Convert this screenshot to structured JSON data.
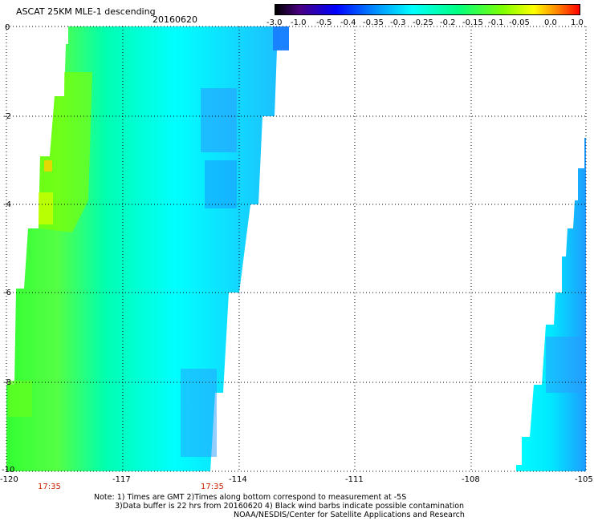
{
  "header": {
    "title": "ASCAT 25KM MLE-1 descending",
    "date": "20160620"
  },
  "colorbar": {
    "labels": [
      "-3.0",
      "-1.0",
      "-0.5",
      "-0.4",
      "-0.35",
      "-0.3",
      "-0.25",
      "-0.2",
      "-0.15",
      "-0.1",
      "-0.05",
      "0.0",
      "1.0"
    ],
    "colors": [
      "#000000",
      "#4a0080",
      "#0000ff",
      "#0070ff",
      "#00c0ff",
      "#00ffff",
      "#00ffa0",
      "#00ff40",
      "#60ff00",
      "#d0ff00",
      "#ffff00",
      "#ff8000",
      "#ff0000"
    ]
  },
  "axes": {
    "x_ticks": [
      "-120",
      "-117",
      "-114",
      "-111",
      "-108",
      "-105"
    ],
    "y_ticks": [
      "0",
      "-2",
      "-4",
      "-6",
      "-8",
      "-10"
    ],
    "lon_range": [
      -120,
      -105
    ],
    "lat_range": [
      0,
      -10
    ]
  },
  "times": [
    "17:35",
    "17:35"
  ],
  "notes": {
    "line1": "Note: 1) Times are GMT 2)Times along bottom correspond to measurement at -5S",
    "line2": "3)Data buffer is 22 hrs from 20160620 4) Black wind barbs indicate possible contamination",
    "line3": "NOAA/NESDIS/Center for Satellite Applications and Research"
  },
  "colors": {
    "green": "#33ff33",
    "cyan": "#00ffff",
    "blue": "#1e90ff",
    "yellow": "#ccff00",
    "time_label": "#cc2200"
  }
}
